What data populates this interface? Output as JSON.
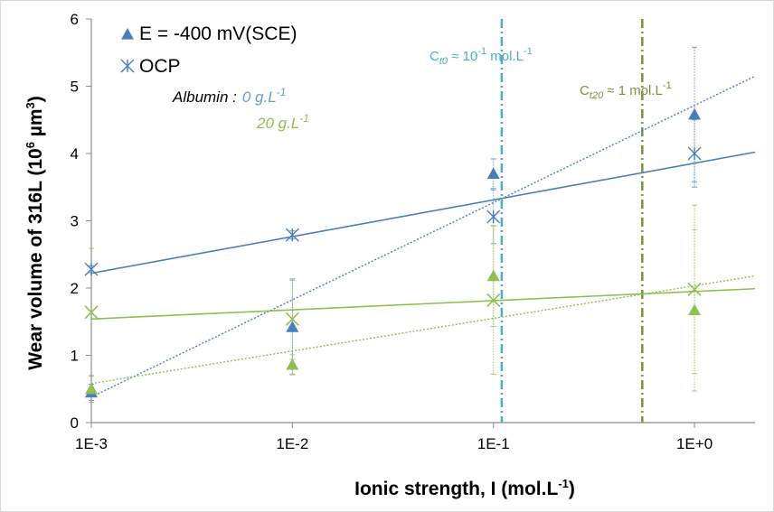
{
  "chart_data": {
    "type": "scatter",
    "x_axis": {
      "label": "Ionic strength, I (mol.L",
      "label_sup": "-1",
      "label_end": ")",
      "scale": "log",
      "range": [
        0.001,
        2
      ],
      "ticks": [
        0.001,
        0.01,
        0.1,
        1
      ],
      "tick_labels": [
        "1E-3",
        "1E-2",
        "1E-1",
        "1E+0"
      ]
    },
    "y_axis": {
      "label": "Wear volume of 316L (10",
      "label_sup": "6",
      "label_mid": " µm",
      "label_sup2": "3",
      "label_end": ")",
      "range": [
        0,
        6
      ],
      "ticks": [
        0,
        1,
        2,
        3,
        4,
        5,
        6
      ],
      "tick_labels": [
        "0",
        "1",
        "2",
        "3",
        "4",
        "5",
        "6"
      ]
    },
    "grid": false,
    "legend": {
      "position": "top-left",
      "entries": [
        {
          "marker": "triangle",
          "label": "E = -400 mV(SCE)"
        },
        {
          "marker": "asterisk",
          "label": "OCP"
        }
      ]
    },
    "albumin_labels": {
      "prefix": "Albumin :",
      "blue": "0 g.L",
      "blue_sup": "-1",
      "green": "20 g.L",
      "green_sup": "-1"
    },
    "colors": {
      "blue": "#4a7ebb",
      "blue_light": "#6a9ad0",
      "green": "#8fbf4f",
      "green_light": "#a9cc70",
      "cyan_vline": "#4bacc6",
      "olive_vline": "#77933c",
      "axis": "#8c8c8c"
    },
    "vertical_lines": [
      {
        "x": 0.11,
        "label_c": "C",
        "label_sub": "t0",
        "label_eq": " ≈ 10",
        "label_sup": "-1",
        "label_unit": " mol.L",
        "label_sup2": "-1",
        "color": "cyan_vline"
      },
      {
        "x": 0.55,
        "label_c": "C",
        "label_sub": "t20",
        "label_eq": " ≈ 1 mol.L",
        "label_sup": "-1",
        "label_unit": "",
        "label_sup2": "",
        "color": "olive_vline"
      }
    ],
    "series": [
      {
        "marker": "triangle",
        "albumin": "0 g.L-1",
        "color": "blue",
        "x": [
          0.001,
          0.01,
          0.1,
          1
        ],
        "y": [
          0.45,
          1.42,
          3.7,
          4.58
        ],
        "err": [
          0.12,
          0.7,
          0.22,
          1.0
        ],
        "trend": {
          "style": "dotted",
          "from": [
            0.001,
            0.38
          ],
          "to": [
            2,
            5.15
          ]
        }
      },
      {
        "marker": "asterisk",
        "albumin": "0 g.L-1",
        "color": "blue",
        "x": [
          0.001,
          0.01,
          0.1,
          1
        ],
        "y": [
          2.28,
          2.79,
          3.06,
          4.0
        ],
        "err": [
          0.05,
          0.06,
          0.4,
          0.5
        ],
        "trend": {
          "style": "solid",
          "from": [
            0.001,
            2.22
          ],
          "to": [
            2,
            4.02
          ]
        }
      },
      {
        "marker": "triangle",
        "albumin": "20 g.L-1",
        "color": "green",
        "x": [
          0.001,
          0.01,
          0.1,
          1
        ],
        "y": [
          0.5,
          0.86,
          2.18,
          1.67
        ],
        "err": [
          0.2,
          0.15,
          0.75,
          1.2
        ],
        "trend": {
          "style": "dotted",
          "from": [
            0.001,
            0.58
          ],
          "to": [
            2,
            2.18
          ]
        }
      },
      {
        "marker": "x",
        "albumin": "20 g.L-1",
        "color": "green",
        "x": [
          0.001,
          0.01,
          0.1,
          1
        ],
        "y": [
          1.64,
          1.54,
          1.82,
          1.98
        ],
        "err": [
          0.95,
          0.6,
          1.1,
          1.25
        ],
        "trend": {
          "style": "solid",
          "from": [
            0.001,
            1.54
          ],
          "to": [
            2,
            1.99
          ]
        }
      }
    ]
  }
}
